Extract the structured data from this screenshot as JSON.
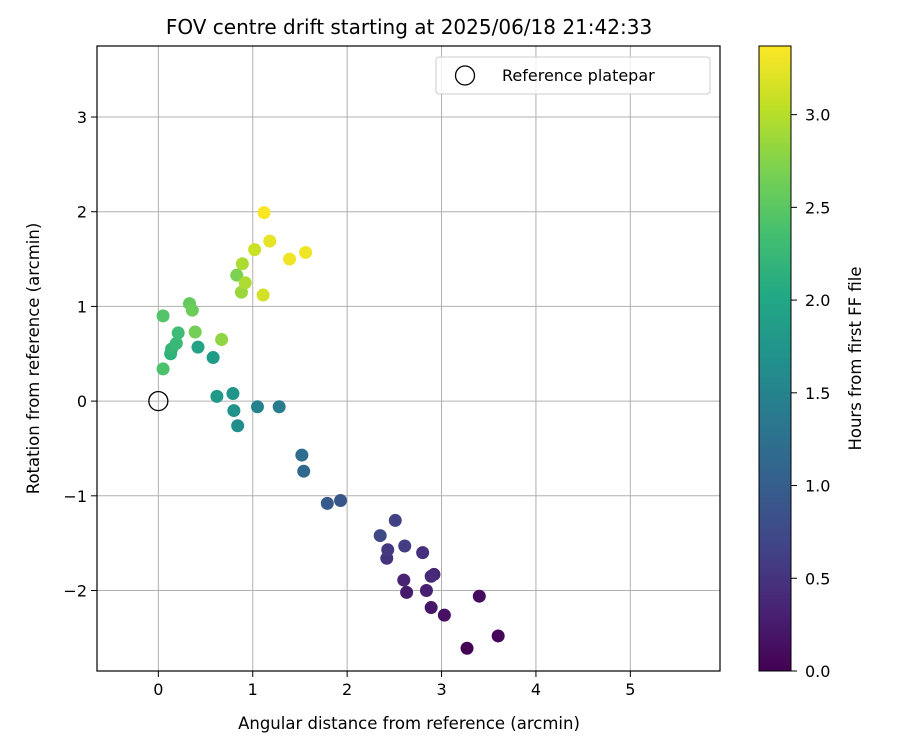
{
  "chart_data": {
    "type": "scatter",
    "title": "FOV centre drift starting at 2025/06/18 21:42:33",
    "xlabel": "Angular distance from reference (arcmin)",
    "ylabel": "Rotation from reference (arcmin)",
    "xlim": [
      -0.65,
      5.95
    ],
    "ylim": [
      -2.85,
      3.75
    ],
    "xticks": [
      0,
      1,
      2,
      3,
      4,
      5
    ],
    "xtick_labels": [
      "0",
      "1",
      "2",
      "3",
      "4",
      "5"
    ],
    "yticks": [
      -2,
      -1,
      0,
      1,
      2,
      3
    ],
    "ytick_labels": [
      "−2",
      "−1",
      "0",
      "1",
      "2",
      "3"
    ],
    "grid": true,
    "legend": {
      "placement": "top-right",
      "entries": [
        {
          "label": "Reference platepar",
          "marker": "open-circle"
        }
      ]
    },
    "reference_point": {
      "x": 0,
      "y": 0
    },
    "colorbar": {
      "label": "Hours from first FF file",
      "colormap": "viridis",
      "range": [
        0.0,
        3.37
      ],
      "ticks": [
        0.0,
        0.5,
        1.0,
        1.5,
        2.0,
        2.5,
        3.0
      ],
      "tick_labels": [
        "0.0",
        "0.5",
        "1.0",
        "1.5",
        "2.0",
        "2.5",
        "3.0"
      ]
    },
    "series": [
      {
        "points": [
          {
            "x": 3.27,
            "y": -2.61,
            "c": 0.0
          },
          {
            "x": 3.6,
            "y": -2.48,
            "c": 0.05
          },
          {
            "x": 3.4,
            "y": -2.06,
            "c": 0.1
          },
          {
            "x": 3.03,
            "y": -2.26,
            "c": 0.15
          },
          {
            "x": 2.89,
            "y": -2.18,
            "c": 0.2
          },
          {
            "x": 2.63,
            "y": -2.02,
            "c": 0.25
          },
          {
            "x": 2.84,
            "y": -2.0,
            "c": 0.3
          },
          {
            "x": 2.6,
            "y": -1.89,
            "c": 0.33
          },
          {
            "x": 2.92,
            "y": -1.83,
            "c": 0.36
          },
          {
            "x": 2.89,
            "y": -1.85,
            "c": 0.4
          },
          {
            "x": 2.8,
            "y": -1.6,
            "c": 0.45
          },
          {
            "x": 2.42,
            "y": -1.66,
            "c": 0.5
          },
          {
            "x": 2.43,
            "y": -1.57,
            "c": 0.55
          },
          {
            "x": 2.61,
            "y": -1.53,
            "c": 0.6
          },
          {
            "x": 2.51,
            "y": -1.26,
            "c": 0.65
          },
          {
            "x": 2.35,
            "y": -1.42,
            "c": 0.75
          },
          {
            "x": 1.93,
            "y": -1.05,
            "c": 0.9
          },
          {
            "x": 1.79,
            "y": -1.08,
            "c": 0.95
          },
          {
            "x": 1.54,
            "y": -0.74,
            "c": 1.15
          },
          {
            "x": 1.52,
            "y": -0.57,
            "c": 1.2
          },
          {
            "x": 1.28,
            "y": -0.06,
            "c": 1.4
          },
          {
            "x": 1.05,
            "y": -0.06,
            "c": 1.5
          },
          {
            "x": 0.84,
            "y": -0.26,
            "c": 1.65
          },
          {
            "x": 0.8,
            "y": -0.1,
            "c": 1.7
          },
          {
            "x": 0.79,
            "y": 0.08,
            "c": 1.75
          },
          {
            "x": 0.62,
            "y": 0.05,
            "c": 1.8
          },
          {
            "x": 0.58,
            "y": 0.46,
            "c": 1.85
          },
          {
            "x": 0.42,
            "y": 0.57,
            "c": 1.95
          },
          {
            "x": 0.13,
            "y": 0.5,
            "c": 2.15
          },
          {
            "x": 0.14,
            "y": 0.55,
            "c": 2.2
          },
          {
            "x": 0.19,
            "y": 0.61,
            "c": 2.25
          },
          {
            "x": 0.21,
            "y": 0.72,
            "c": 2.3
          },
          {
            "x": 0.05,
            "y": 0.34,
            "c": 2.4
          },
          {
            "x": 0.05,
            "y": 0.9,
            "c": 2.45
          },
          {
            "x": 0.33,
            "y": 1.03,
            "c": 2.55
          },
          {
            "x": 0.36,
            "y": 0.96,
            "c": 2.6
          },
          {
            "x": 0.39,
            "y": 0.73,
            "c": 2.65
          },
          {
            "x": 0.67,
            "y": 0.65,
            "c": 2.8
          },
          {
            "x": 0.83,
            "y": 1.33,
            "c": 2.7
          },
          {
            "x": 0.88,
            "y": 1.15,
            "c": 2.85
          },
          {
            "x": 0.92,
            "y": 1.25,
            "c": 2.95
          },
          {
            "x": 0.89,
            "y": 1.45,
            "c": 2.95
          },
          {
            "x": 1.02,
            "y": 1.6,
            "c": 3.1
          },
          {
            "x": 1.11,
            "y": 1.12,
            "c": 3.15
          },
          {
            "x": 1.18,
            "y": 1.69,
            "c": 3.25
          },
          {
            "x": 1.39,
            "y": 1.5,
            "c": 3.3
          },
          {
            "x": 1.56,
            "y": 1.57,
            "c": 3.3
          },
          {
            "x": 1.12,
            "y": 1.99,
            "c": 3.35
          }
        ]
      }
    ]
  }
}
